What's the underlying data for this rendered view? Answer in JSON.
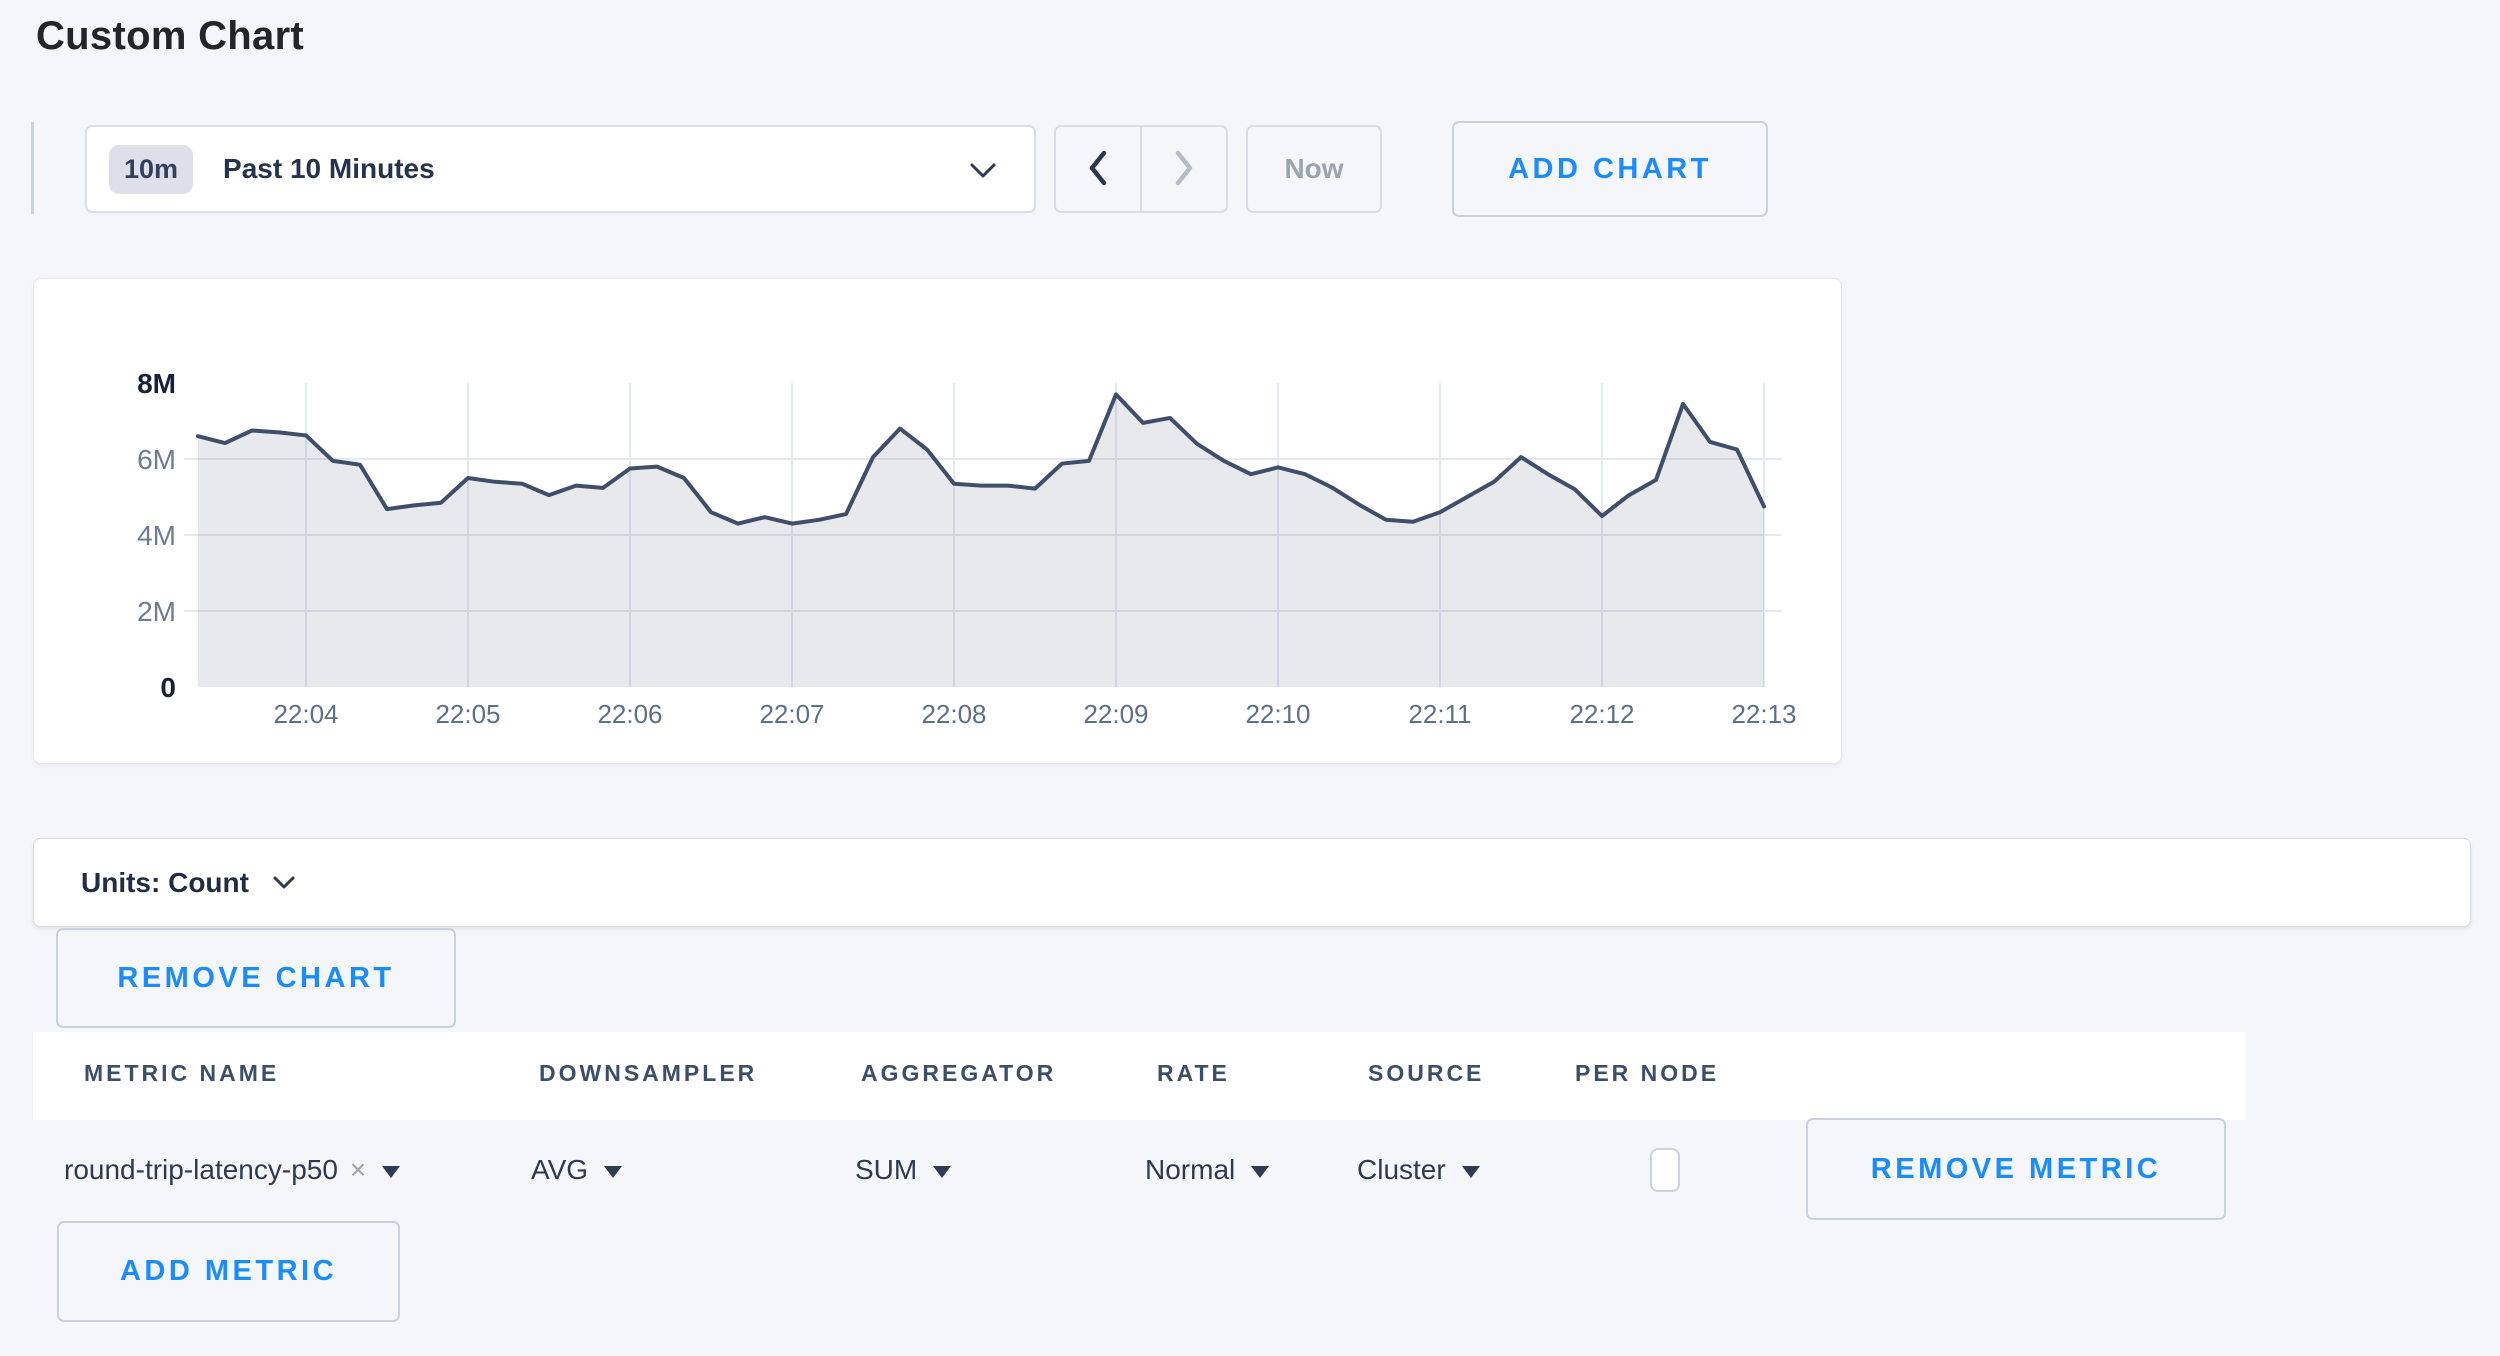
{
  "page": {
    "title": "Custom Chart",
    "background": "#f4f6f9",
    "accent_blue": "#1a8cff"
  },
  "toolbar": {
    "time_badge": "10m",
    "time_label": "Past 10 Minutes",
    "now_label": "Now",
    "add_chart_label": "ADD CHART"
  },
  "chart_data": {
    "type": "area",
    "title": "",
    "legend": "none",
    "series": [
      {
        "name": "round-trip-latency-p50",
        "color": "#3f4e6a",
        "fill_color": "#3f4e6a",
        "fill_opacity": 0.12,
        "sample_interval_seconds": 10,
        "unit": "count",
        "values_millions": [
          6.6,
          6.42,
          6.75,
          6.7,
          6.62,
          5.95,
          5.85,
          4.68,
          4.78,
          4.85,
          5.5,
          5.4,
          5.35,
          5.05,
          5.3,
          5.24,
          5.75,
          5.8,
          5.5,
          4.6,
          4.3,
          4.47,
          4.3,
          4.4,
          4.55,
          6.05,
          6.8,
          6.25,
          5.35,
          5.3,
          5.3,
          5.22,
          5.88,
          5.95,
          7.7,
          6.95,
          7.08,
          6.4,
          5.95,
          5.6,
          5.78,
          5.6,
          5.25,
          4.8,
          4.4,
          4.35,
          4.6,
          5.0,
          5.4,
          6.05,
          5.6,
          5.2,
          4.5,
          5.05,
          5.45,
          7.45,
          6.45,
          6.25,
          4.75
        ]
      }
    ],
    "x_tick_labels": [
      "22:04",
      "22:05",
      "22:06",
      "22:07",
      "22:08",
      "22:09",
      "22:10",
      "22:11",
      "22:12",
      "22:13"
    ],
    "x_tick_indices": [
      4,
      10,
      16,
      22,
      28,
      34,
      40,
      46,
      52,
      58
    ],
    "y_axis": {
      "max_millions": 8,
      "ticks": [
        {
          "label": "8M",
          "value_millions": 8,
          "bold": true,
          "gridline": false
        },
        {
          "label": "6M",
          "value_millions": 6,
          "bold": false,
          "gridline": true
        },
        {
          "label": "4M",
          "value_millions": 4,
          "bold": false,
          "gridline": true
        },
        {
          "label": "2M",
          "value_millions": 2,
          "bold": false,
          "gridline": true
        },
        {
          "label": "0",
          "value_millions": 0,
          "bold": true,
          "gridline": false
        }
      ]
    },
    "grid_color": "#e4e9f0"
  },
  "units": {
    "label": "Units: Count"
  },
  "actions": {
    "remove_chart": "REMOVE CHART",
    "add_metric": "ADD METRIC"
  },
  "metrics_table": {
    "headers": [
      "METRIC NAME",
      "DOWNSAMPLER",
      "AGGREGATOR",
      "RATE",
      "SOURCE",
      "PER NODE"
    ],
    "rows": [
      {
        "metric_name": "round-trip-latency-p50",
        "clear_icon": "×",
        "downsampler": "AVG",
        "aggregator": "SUM",
        "rate": "Normal",
        "source": "Cluster",
        "per_node_checked": false,
        "remove_label": "REMOVE METRIC"
      }
    ]
  }
}
